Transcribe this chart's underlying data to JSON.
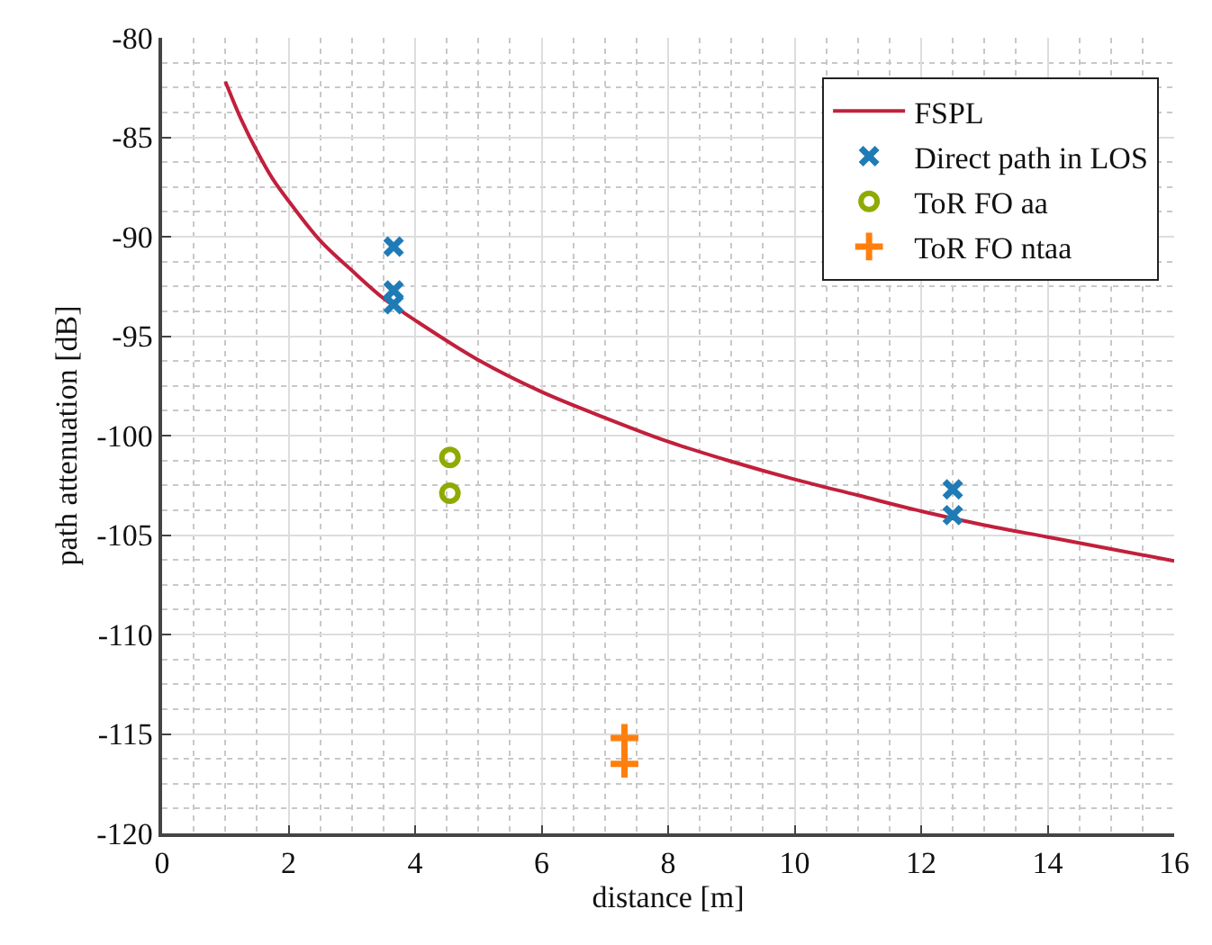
{
  "chart_data": {
    "type": "scatter",
    "xlabel": "distance [m]",
    "ylabel": "path attenuation [dB]",
    "xlim": [
      0,
      16
    ],
    "xticks": [
      0,
      2,
      4,
      6,
      8,
      10,
      12,
      14,
      16
    ],
    "ylim": [
      -120,
      -80
    ],
    "yticks": [
      -120,
      -115,
      -110,
      -105,
      -100,
      -95,
      -90,
      -85,
      -80
    ],
    "grid": true,
    "legend": "top right",
    "series": [
      {
        "name": "FSPL",
        "type": "line",
        "color": "#c1203c",
        "marker": "none",
        "line_style": "solid",
        "x": [
          1,
          1.25,
          1.5,
          1.75,
          2,
          2.5,
          3,
          3.5,
          4,
          5,
          6,
          7,
          8,
          9,
          10,
          11,
          12,
          13,
          14,
          15,
          16
        ],
        "values": [
          -82.2,
          -84.1,
          -85.7,
          -87.1,
          -88.2,
          -90.2,
          -91.7,
          -93.1,
          -94.2,
          -96.2,
          -97.8,
          -99.1,
          -100.3,
          -101.3,
          -102.2,
          -103.0,
          -103.8,
          -104.5,
          -105.1,
          -105.7,
          -106.3
        ]
      },
      {
        "name": "Direct path in LOS",
        "color": "#1f7bb6",
        "marker": "cross",
        "x": [
          3.66,
          3.66,
          3.66,
          12.5,
          12.5
        ],
        "values": [
          -90.5,
          -92.7,
          -93.4,
          -102.7,
          -104.0
        ]
      },
      {
        "name": "ToR FO aa",
        "color": "#8faa00",
        "marker": "circle",
        "x": [
          4.55,
          4.55
        ],
        "values": [
          -101.1,
          -102.9
        ]
      },
      {
        "name": "ToR FO ntaa",
        "color": "#ff7f0e",
        "marker": "plus",
        "x": [
          7.31,
          7.31
        ],
        "values": [
          -115.2,
          -116.5
        ]
      }
    ]
  }
}
